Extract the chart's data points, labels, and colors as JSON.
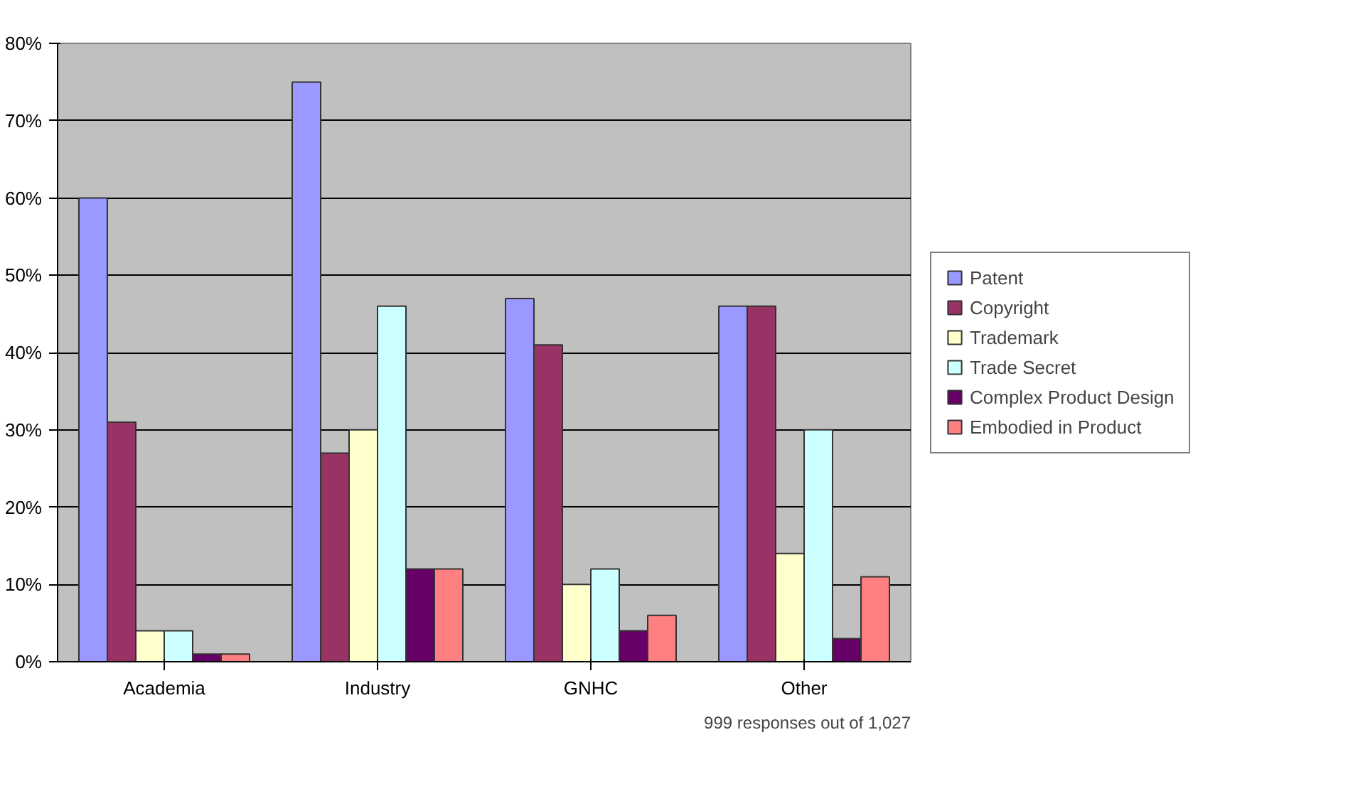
{
  "chart_data": {
    "type": "bar",
    "categories": [
      "Academia",
      "Industry",
      "GNHC",
      "Other"
    ],
    "series": [
      {
        "name": "Patent",
        "color": "#9999ff",
        "values": [
          60,
          75,
          47,
          46
        ]
      },
      {
        "name": "Copyright",
        "color": "#993366",
        "values": [
          31,
          27,
          41,
          46
        ]
      },
      {
        "name": "Trademark",
        "color": "#ffffcc",
        "values": [
          4,
          30,
          10,
          14
        ]
      },
      {
        "name": "Trade Secret",
        "color": "#ccffff",
        "values": [
          4,
          46,
          12,
          30
        ]
      },
      {
        "name": "Complex Product Design",
        "color": "#660066",
        "values": [
          1,
          12,
          4,
          3
        ]
      },
      {
        "name": "Embodied in Product",
        "color": "#ff8080",
        "values": [
          1,
          12,
          6,
          11
        ]
      }
    ],
    "ylim": [
      0,
      80
    ],
    "yticks": [
      {
        "value": 0,
        "label": "0%"
      },
      {
        "value": 10,
        "label": "10%"
      },
      {
        "value": 20,
        "label": "20%"
      },
      {
        "value": 30,
        "label": "30%"
      },
      {
        "value": 40,
        "label": "40%"
      },
      {
        "value": 50,
        "label": "50%"
      },
      {
        "value": 60,
        "label": "60%"
      },
      {
        "value": 70,
        "label": "70%"
      },
      {
        "value": 80,
        "label": "80%"
      }
    ],
    "grid": "y",
    "legend": "right",
    "annotations": [
      "999 responses out of 1,027"
    ]
  }
}
